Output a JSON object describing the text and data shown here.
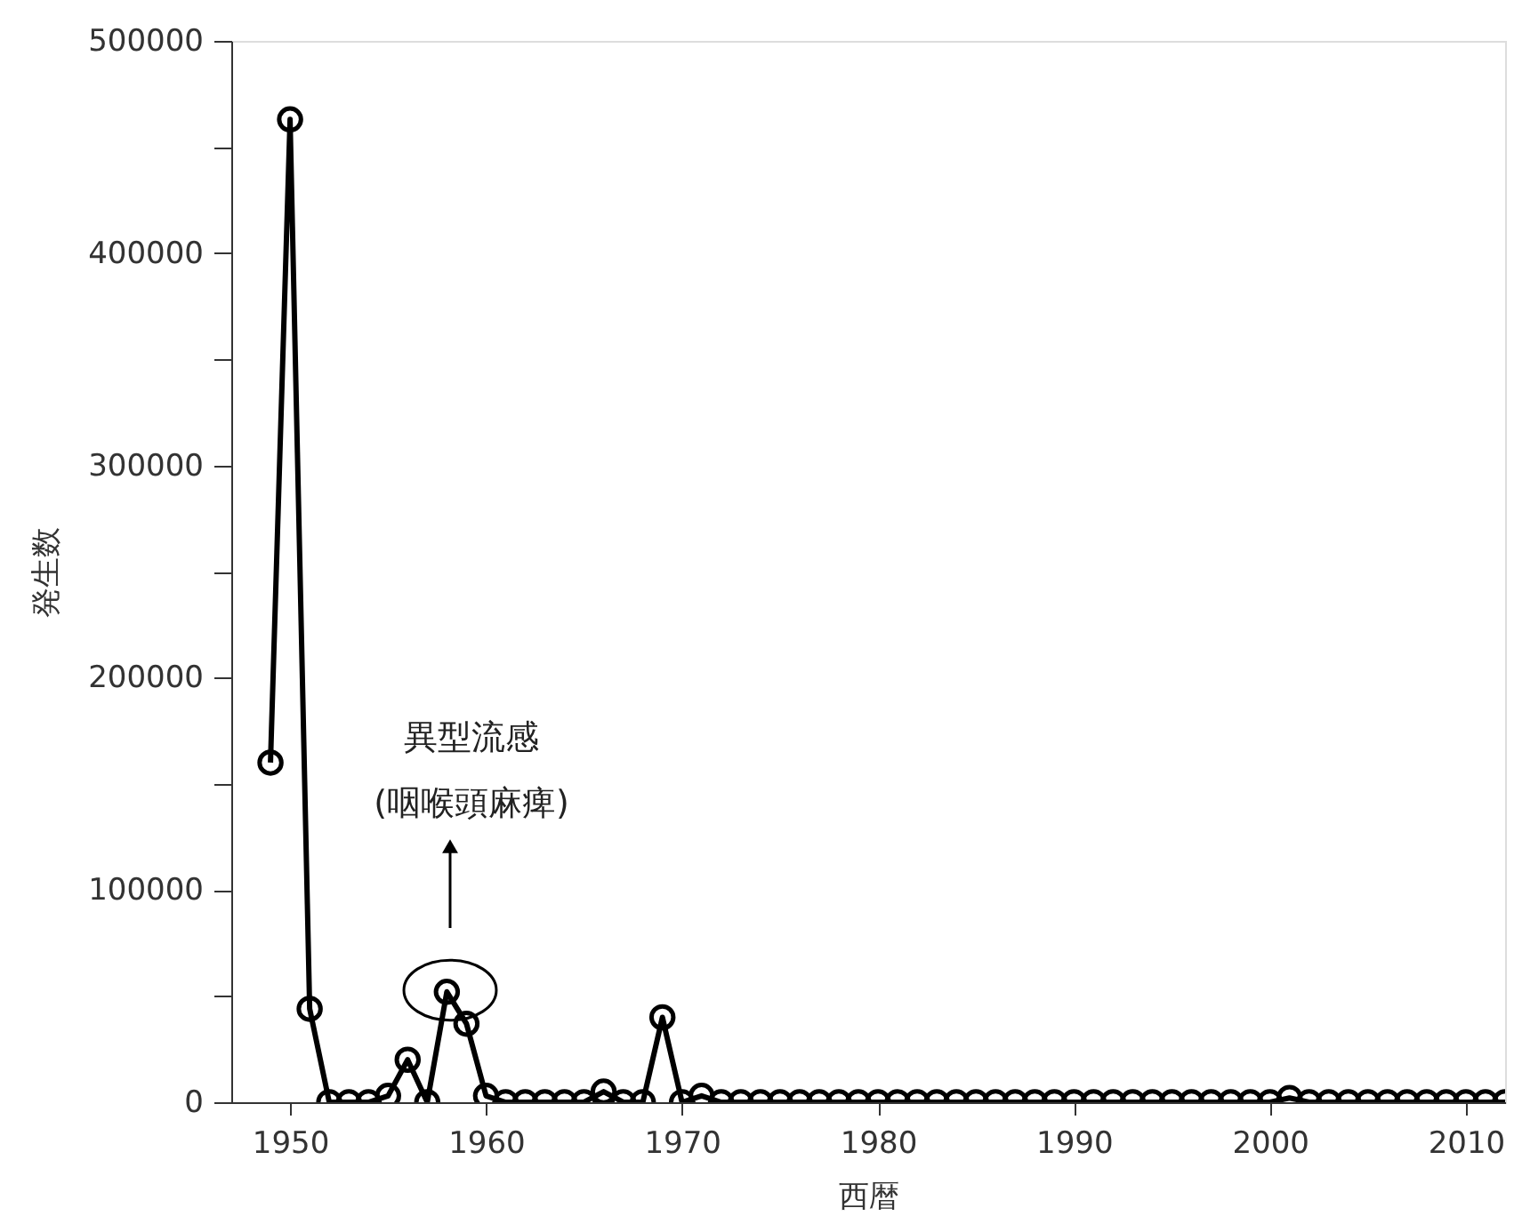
{
  "chart_data": {
    "type": "line",
    "xlabel": "西暦",
    "ylabel": "発生数",
    "x": [
      1949,
      1950,
      1951,
      1952,
      1953,
      1954,
      1955,
      1956,
      1957,
      1958,
      1959,
      1960,
      1961,
      1962,
      1963,
      1964,
      1965,
      1966,
      1967,
      1968,
      1969,
      1970,
      1971,
      1972,
      1973,
      1974,
      1975,
      1976,
      1977,
      1978,
      1979,
      1980,
      1981,
      1982,
      1983,
      1984,
      1985,
      1986,
      1987,
      1988,
      1989,
      1990,
      1991,
      1992,
      1993,
      1994,
      1995,
      1996,
      1997,
      1998,
      1999,
      2000,
      2001,
      2002,
      2003,
      2004,
      2005,
      2006,
      2007,
      2008,
      2009,
      2010,
      2011,
      2012
    ],
    "series": [
      {
        "color": "#000000",
        "values": [
          160000,
          463000,
          44000,
          0,
          0,
          0,
          3000,
          20000,
          0,
          52000,
          37000,
          3000,
          0,
          0,
          0,
          0,
          0,
          5000,
          0,
          0,
          40000,
          0,
          3000,
          0,
          0,
          0,
          0,
          0,
          0,
          0,
          0,
          0,
          0,
          0,
          0,
          0,
          0,
          0,
          0,
          0,
          0,
          0,
          0,
          0,
          0,
          0,
          0,
          0,
          0,
          0,
          0,
          0,
          2000,
          0,
          0,
          0,
          0,
          0,
          0,
          0,
          0,
          0,
          0,
          0
        ]
      }
    ],
    "xlim": [
      1947,
      2012
    ],
    "xticks": [
      1950,
      1960,
      1970,
      1980,
      1990,
      2000,
      2010
    ],
    "ylim": [
      0,
      500000
    ],
    "yticks": [
      0,
      {
        "value": 50000,
        "label": null
      },
      100000,
      {
        "value": 150000,
        "label": null
      },
      200000,
      {
        "value": 250000,
        "label": null
      },
      300000,
      {
        "value": 350000,
        "label": null
      },
      400000,
      {
        "value": 450000,
        "label": null
      },
      500000
    ],
    "annotations": [
      "異型流感\n(咽喉頭麻痺)"
    ],
    "marker": "circle",
    "line_style": "solid",
    "grid": false,
    "legend": false
  }
}
